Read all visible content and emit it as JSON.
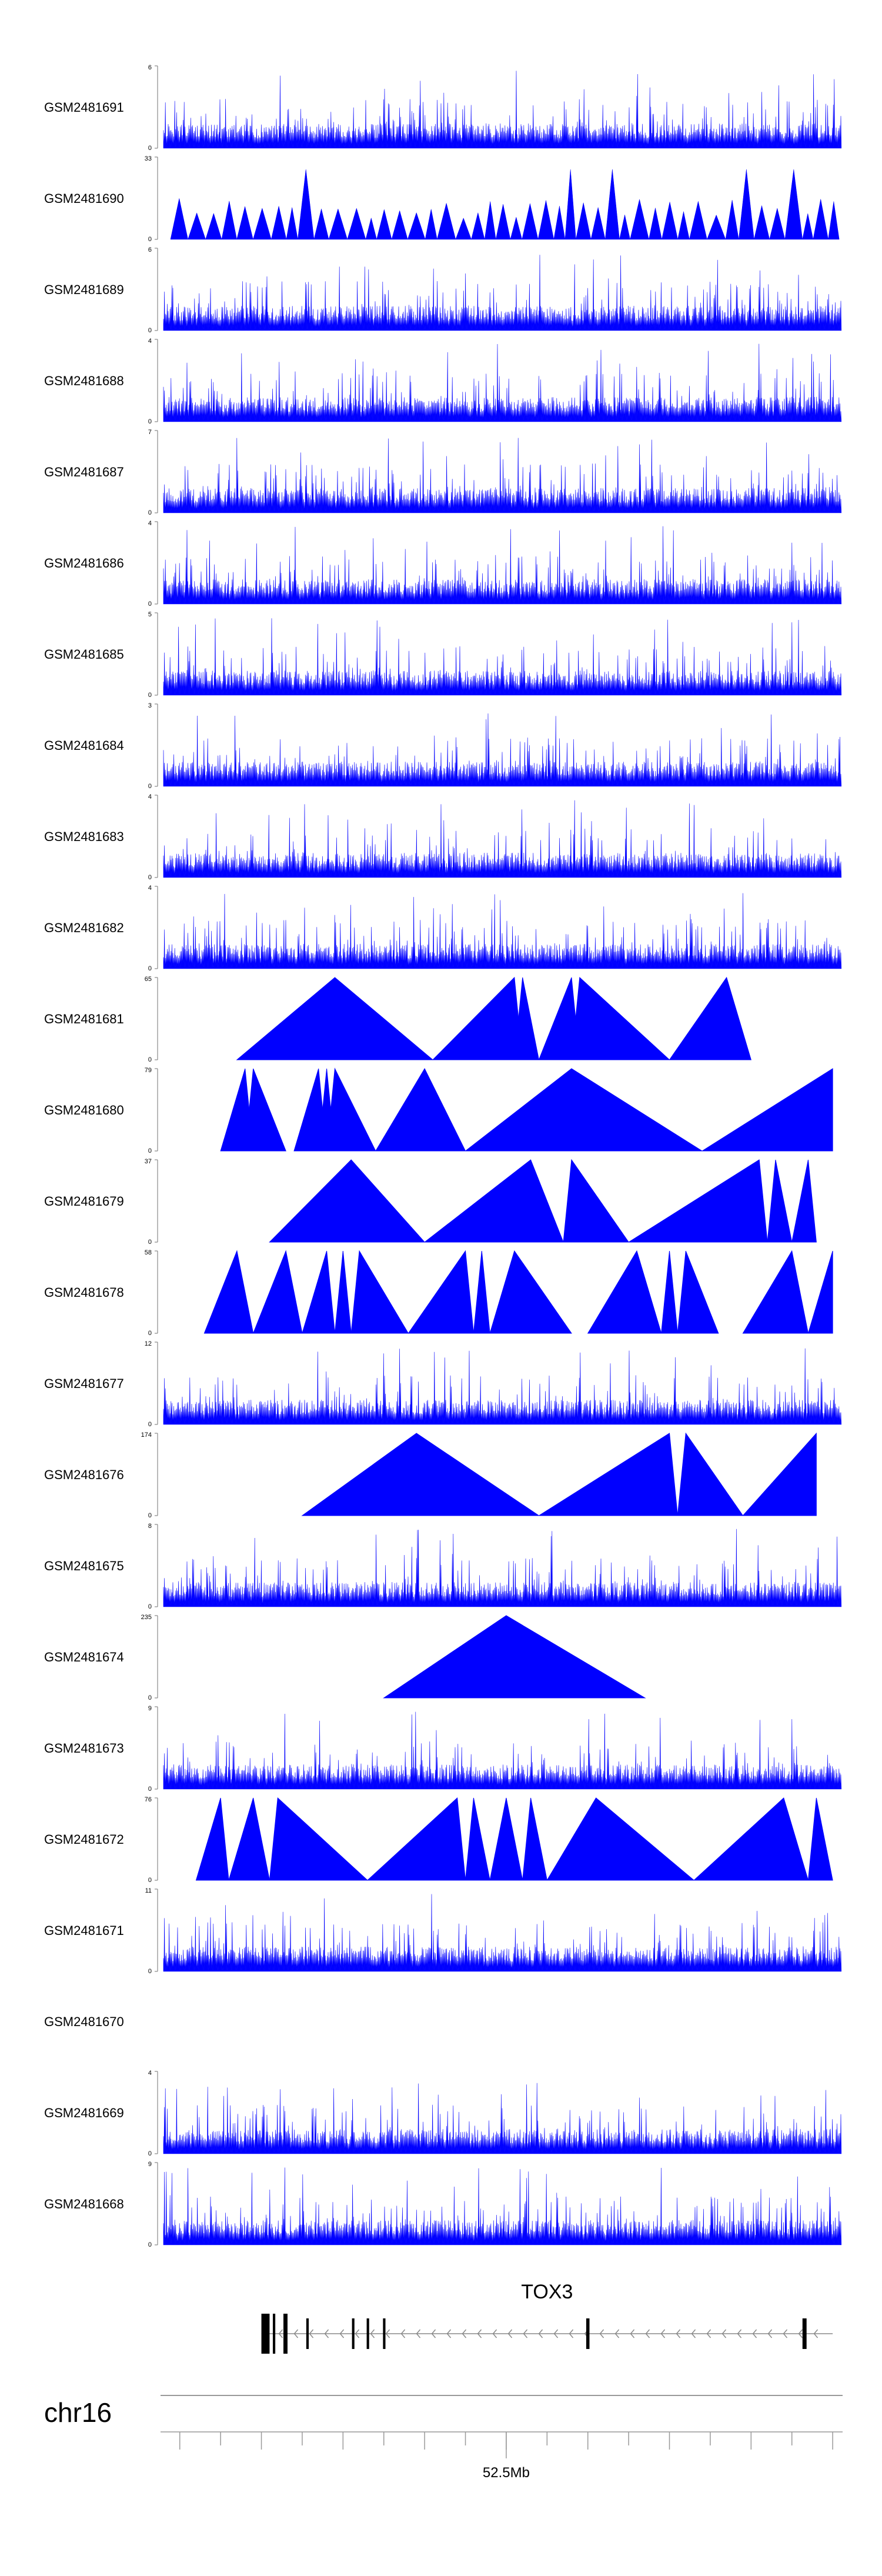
{
  "chart_data": {
    "type": "area",
    "title": "",
    "color": "#0000ff",
    "series": [
      {
        "name": "GSM2481691",
        "ymax": "6",
        "ymin": "0",
        "style": "dense",
        "seed": 11
      },
      {
        "name": "GSM2481690",
        "ymax": "33",
        "ymin": "0",
        "style": "tri",
        "seed": 12
      },
      {
        "name": "GSM2481689",
        "ymax": "6",
        "ymin": "0",
        "style": "dense",
        "seed": 13
      },
      {
        "name": "GSM2481688",
        "ymax": "4",
        "ymin": "0",
        "style": "dense",
        "seed": 14
      },
      {
        "name": "GSM2481687",
        "ymax": "7",
        "ymin": "0",
        "style": "dense",
        "seed": 15
      },
      {
        "name": "GSM2481686",
        "ymax": "4",
        "ymin": "0",
        "style": "dense",
        "seed": 16
      },
      {
        "name": "GSM2481685",
        "ymax": "5",
        "ymin": "0",
        "style": "dense",
        "seed": 17
      },
      {
        "name": "GSM2481684",
        "ymax": "3",
        "ymin": "0",
        "style": "dense",
        "seed": 18
      },
      {
        "name": "GSM2481683",
        "ymax": "4",
        "ymin": "0",
        "style": "dense",
        "seed": 19
      },
      {
        "name": "GSM2481682",
        "ymax": "4",
        "ymin": "0",
        "style": "dense",
        "seed": 20
      },
      {
        "name": "GSM2481681",
        "ymax": "65",
        "ymin": "0",
        "style": "peaks",
        "peaks": [
          [
            52.17,
            52.29,
            52.41
          ],
          [
            52.41,
            52.51,
            52.52
          ],
          [
            52.51,
            52.52,
            52.54
          ],
          [
            52.54,
            52.58,
            52.59
          ],
          [
            52.58,
            52.59,
            52.7
          ],
          [
            52.7,
            52.77,
            52.8
          ]
        ]
      },
      {
        "name": "GSM2481680",
        "ymax": "79",
        "ymin": "0",
        "style": "peaks",
        "peaks": [
          [
            52.15,
            52.18,
            52.19
          ],
          [
            52.18,
            52.19,
            52.23
          ],
          [
            52.24,
            52.27,
            52.28
          ],
          [
            52.27,
            52.28,
            52.29
          ],
          [
            52.28,
            52.29,
            52.34
          ],
          [
            52.34,
            52.4,
            52.45
          ],
          [
            52.45,
            52.58,
            52.74
          ],
          [
            52.74,
            52.9,
            52.9
          ]
        ]
      },
      {
        "name": "GSM2481679",
        "ymax": "37",
        "ymin": "0",
        "style": "peaks",
        "peaks": [
          [
            52.21,
            52.31,
            52.4
          ],
          [
            52.4,
            52.53,
            52.57
          ],
          [
            52.57,
            52.58,
            52.65
          ],
          [
            52.65,
            52.81,
            52.82
          ],
          [
            52.82,
            52.83,
            52.85
          ],
          [
            52.85,
            52.87,
            52.88
          ]
        ]
      },
      {
        "name": "GSM2481678",
        "ymax": "58",
        "ymin": "0",
        "style": "peaks",
        "peaks": [
          [
            52.13,
            52.17,
            52.19
          ],
          [
            52.19,
            52.23,
            52.25
          ],
          [
            52.25,
            52.28,
            52.29
          ],
          [
            52.29,
            52.3,
            52.31
          ],
          [
            52.31,
            52.32,
            52.38
          ],
          [
            52.38,
            52.45,
            52.46
          ],
          [
            52.46,
            52.47,
            52.48
          ],
          [
            52.48,
            52.51,
            52.58
          ],
          [
            52.6,
            52.66,
            52.69
          ],
          [
            52.69,
            52.7,
            52.71
          ],
          [
            52.71,
            52.72,
            52.76
          ],
          [
            52.79,
            52.85,
            52.87
          ],
          [
            52.87,
            52.9,
            52.9
          ]
        ]
      },
      {
        "name": "GSM2481677",
        "ymax": "12",
        "ymin": "0",
        "style": "dense",
        "seed": 21
      },
      {
        "name": "GSM2481676",
        "ymax": "174",
        "ymin": "0",
        "style": "peaks",
        "peaks": [
          [
            52.25,
            52.39,
            52.54
          ],
          [
            52.54,
            52.7,
            52.71
          ],
          [
            52.71,
            52.72,
            52.79
          ],
          [
            52.79,
            52.88,
            52.88
          ]
        ]
      },
      {
        "name": "GSM2481675",
        "ymax": "8",
        "ymin": "0",
        "style": "dense",
        "seed": 22
      },
      {
        "name": "GSM2481674",
        "ymax": "235",
        "ymin": "0",
        "style": "peaks",
        "peaks": [
          [
            52.35,
            52.5,
            52.67
          ]
        ]
      },
      {
        "name": "GSM2481673",
        "ymax": "9",
        "ymin": "0",
        "style": "dense",
        "seed": 23
      },
      {
        "name": "GSM2481672",
        "ymax": "76",
        "ymin": "0",
        "style": "peaks",
        "peaks": [
          [
            52.12,
            52.15,
            52.16
          ],
          [
            52.16,
            52.19,
            52.21
          ],
          [
            52.21,
            52.22,
            52.33
          ],
          [
            52.33,
            52.44,
            52.45
          ],
          [
            52.45,
            52.46,
            52.48
          ],
          [
            52.48,
            52.5,
            52.52
          ],
          [
            52.52,
            52.53,
            52.55
          ],
          [
            52.55,
            52.61,
            52.73
          ],
          [
            52.73,
            52.84,
            52.87
          ],
          [
            52.87,
            52.88,
            52.9
          ]
        ]
      },
      {
        "name": "GSM2481671",
        "ymax": "11",
        "ymin": "0",
        "style": "dense",
        "seed": 24
      },
      {
        "name": "GSM2481670",
        "ymax": "",
        "ymin": "",
        "style": "empty"
      },
      {
        "name": "GSM2481669",
        "ymax": "4",
        "ymin": "0",
        "style": "dense",
        "seed": 25
      },
      {
        "name": "GSM2481668",
        "ymax": "9",
        "ymin": "0",
        "style": "dense",
        "seed": 26
      }
    ],
    "gene": {
      "name": "TOX3",
      "strand": "-",
      "start": 52.2,
      "end": 52.9,
      "exons": [
        [
          52.2,
          52.21
        ],
        [
          52.214,
          52.217
        ],
        [
          52.227,
          52.232
        ],
        [
          52.255,
          52.258
        ],
        [
          52.311,
          52.314
        ],
        [
          52.329,
          52.332
        ],
        [
          52.349,
          52.352
        ],
        [
          52.598,
          52.602
        ],
        [
          52.863,
          52.866
        ],
        [
          52.865,
          52.868
        ]
      ]
    },
    "axis": {
      "chrom": "chr16",
      "xlim": [
        52.08,
        52.91
      ],
      "tick_step": 0.1,
      "tick_labels": [
        {
          "value": 52.5,
          "text": "52.5Mb"
        }
      ]
    }
  }
}
